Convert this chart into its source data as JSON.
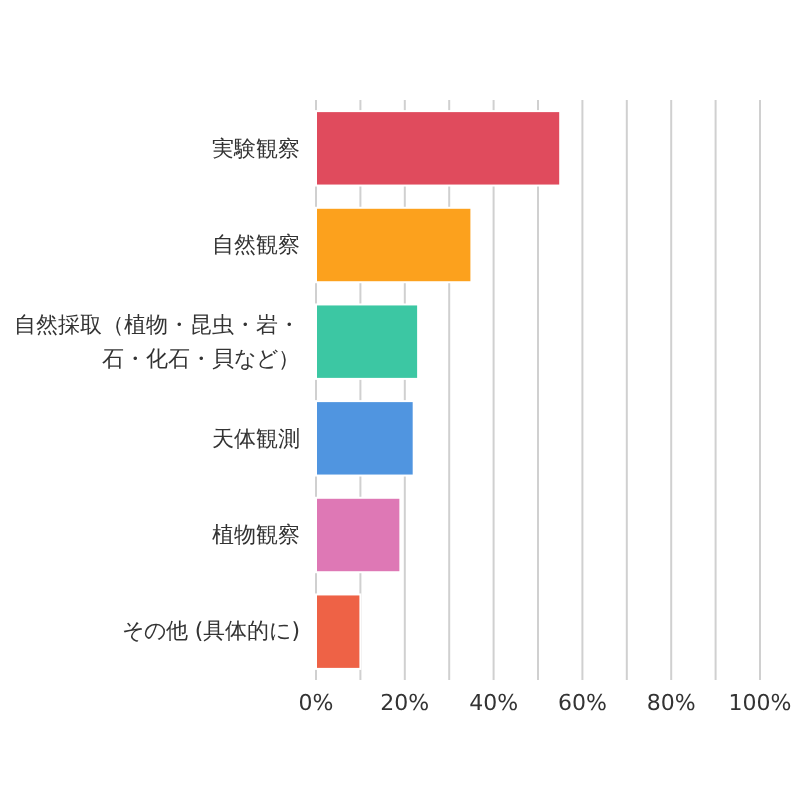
{
  "chart_data": {
    "type": "bar",
    "orientation": "horizontal",
    "categories": [
      "実験観察",
      "自然観察",
      "自然採取（植物・昆虫・岩・石・化石・貝など）",
      "天体観測",
      "植物観察",
      "その他 (具体的に)"
    ],
    "values": [
      55,
      35,
      23,
      22,
      19,
      10
    ],
    "colors": [
      "#e04b5d",
      "#fca11d",
      "#3cc7a3",
      "#5095e0",
      "#de78b5",
      "#ee6246"
    ],
    "xlim": [
      0,
      100
    ],
    "xticks": [
      {
        "value": 0,
        "label": "0%"
      },
      {
        "value": 10,
        "label": null
      },
      {
        "value": 20,
        "label": "20%"
      },
      {
        "value": 30,
        "label": null
      },
      {
        "value": 40,
        "label": "40%"
      },
      {
        "value": 50,
        "label": null
      },
      {
        "value": 60,
        "label": "60%"
      },
      {
        "value": 70,
        "label": null
      },
      {
        "value": 80,
        "label": "80%"
      },
      {
        "value": 90,
        "label": null
      },
      {
        "value": 100,
        "label": "100%"
      }
    ],
    "grid": "x"
  }
}
